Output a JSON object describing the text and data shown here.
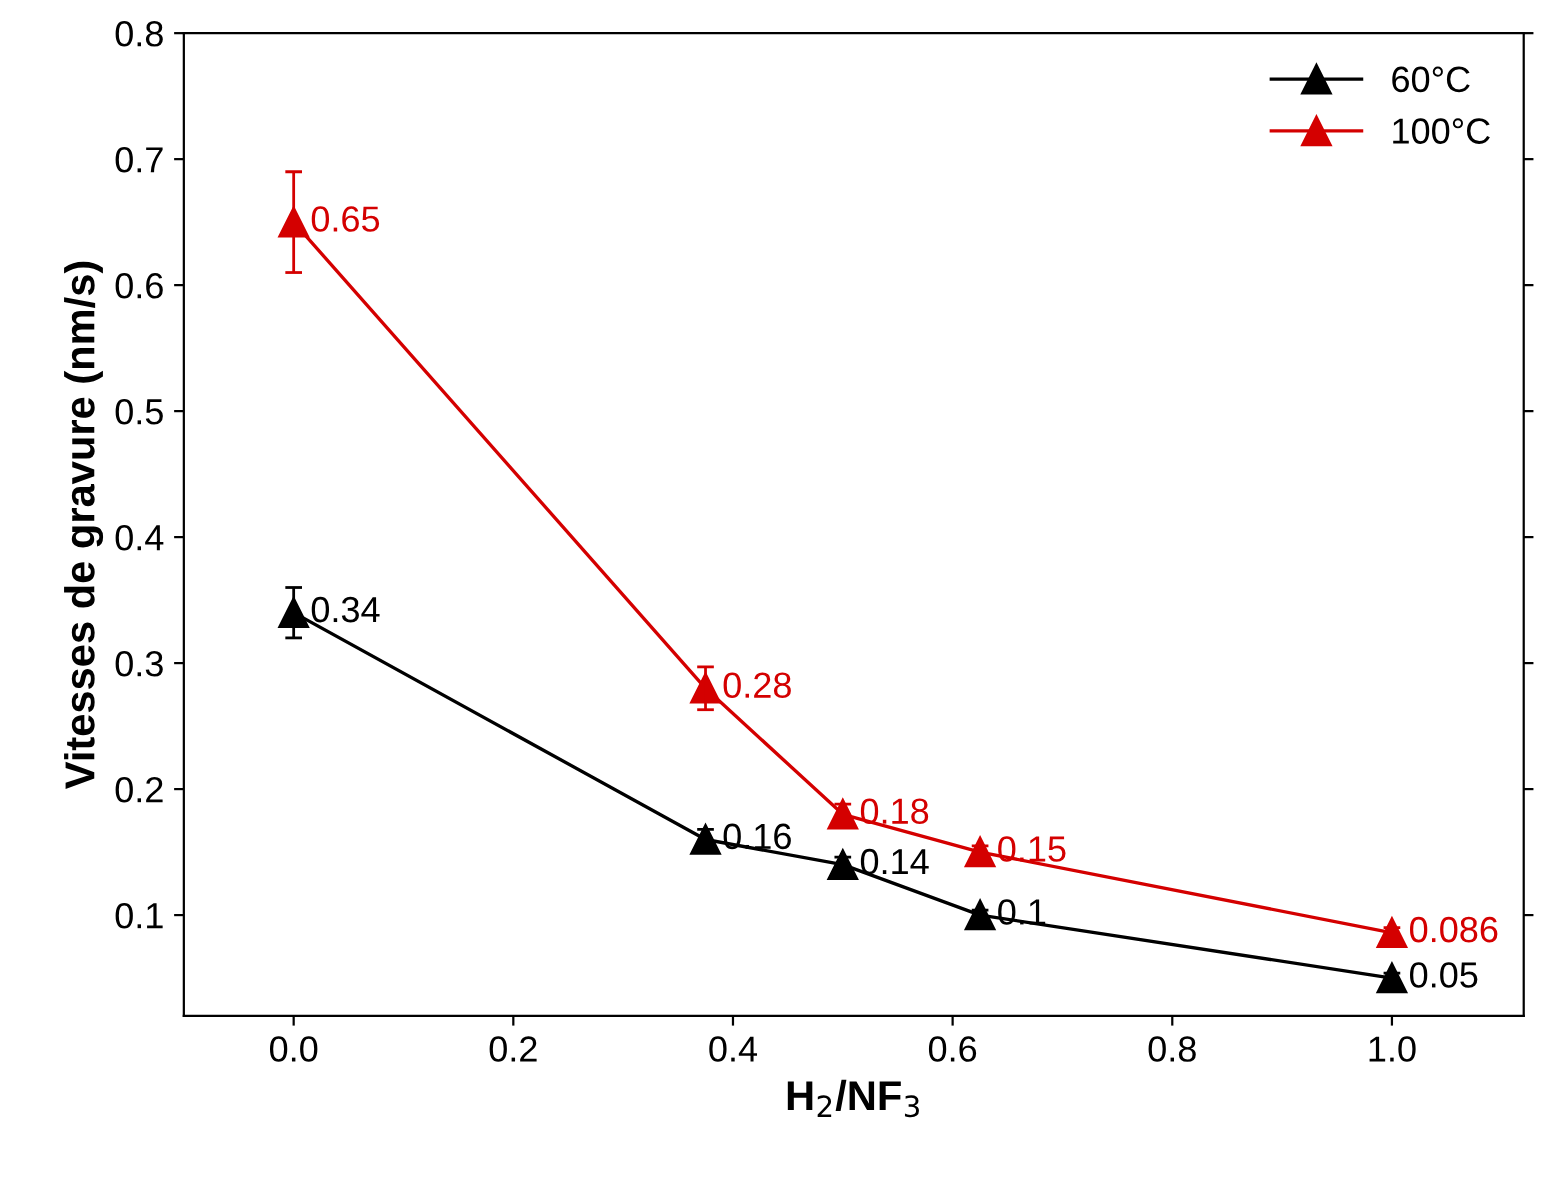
{
  "chart_data": {
    "type": "line",
    "xlabel": "H$_{2}$/NF$_{3}$",
    "ylabel": "Vitesses de gravure (nm/s)",
    "x": [
      0,
      0.375,
      0.5,
      0.625,
      1.0
    ],
    "series": [
      {
        "name": "60°C",
        "color": "#000000",
        "values": [
          0.34,
          0.16,
          0.14,
          0.1,
          0.05
        ],
        "errors": [
          0.02,
          0.008,
          0.006,
          0.004,
          0.004
        ]
      },
      {
        "name": "100°C",
        "color": "#d40000",
        "values": [
          0.65,
          0.28,
          0.18,
          0.15,
          0.086
        ],
        "errors": [
          0.04,
          0.017,
          0.008,
          0.005,
          0.004
        ]
      }
    ],
    "xlim": [
      -0.1,
      1.12
    ],
    "ylim": [
      0.02,
      0.8
    ],
    "xticks": [
      {
        "value": 0,
        "label": "0.0"
      },
      0.2,
      0.4,
      0.6,
      0.8,
      {
        "value": 1.0,
        "label": "1.0"
      }
    ],
    "yticks": [
      0.1,
      0.2,
      0.3,
      0.4,
      0.5,
      0.6,
      0.7,
      0.8
    ],
    "data_labels": true,
    "marker": "triangle",
    "line_style": "solid",
    "legend": "top right",
    "grid": false
  }
}
